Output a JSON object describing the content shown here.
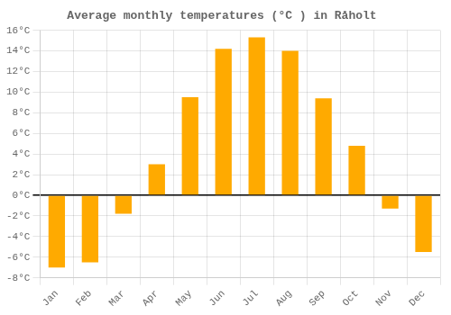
{
  "chart_data": {
    "type": "bar",
    "title": "Average monthly temperatures (°C ) in Råholt",
    "categories": [
      "Jan",
      "Feb",
      "Mar",
      "Apr",
      "May",
      "Jun",
      "Jul",
      "Aug",
      "Sep",
      "Oct",
      "Nov",
      "Dec"
    ],
    "values": [
      -7.0,
      -6.5,
      -1.8,
      3.0,
      9.5,
      14.2,
      15.3,
      14.0,
      9.4,
      4.8,
      -1.3,
      -5.5
    ],
    "color": "#FFAA00",
    "ylim": [
      -8,
      16
    ],
    "yticks": [
      {
        "value": -8,
        "label": "-8°C"
      },
      {
        "value": -6,
        "label": "-6°C"
      },
      {
        "value": -4,
        "label": "-4°C"
      },
      {
        "value": -2,
        "label": "-2°C"
      },
      {
        "value": 0,
        "label": "0°C"
      },
      {
        "value": 2,
        "label": "2°C"
      },
      {
        "value": 4,
        "label": "4°C"
      },
      {
        "value": 6,
        "label": "6°C"
      },
      {
        "value": 8,
        "label": "8°C"
      },
      {
        "value": 10,
        "label": "10°C"
      },
      {
        "value": 12,
        "label": "12°C"
      },
      {
        "value": 14,
        "label": "14°C"
      },
      {
        "value": 16,
        "label": "16°C"
      }
    ],
    "grid": true
  }
}
